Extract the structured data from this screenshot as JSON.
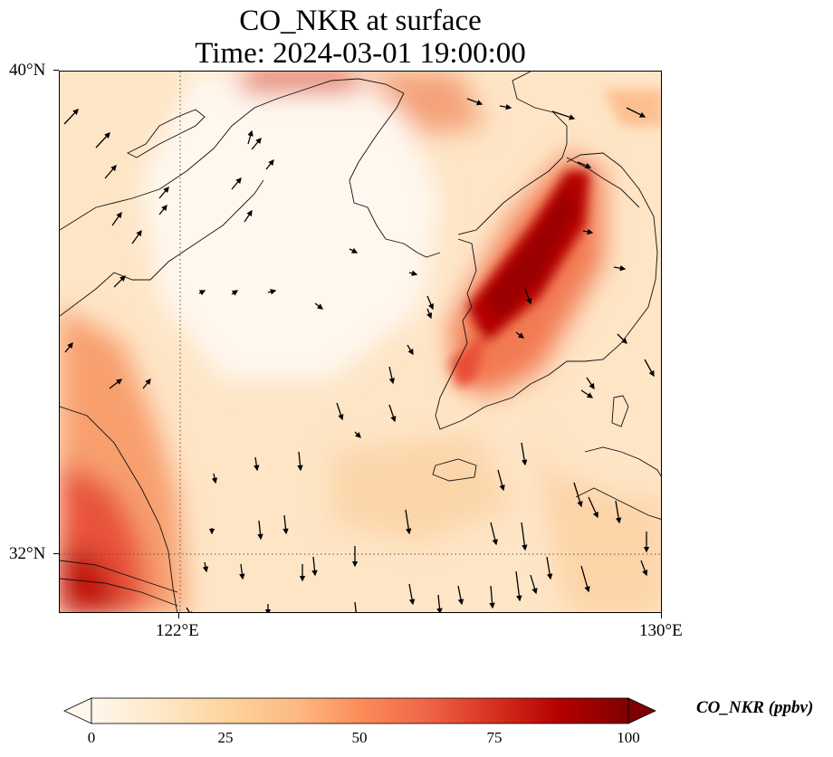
{
  "title": {
    "line1": "CO_NKR at surface",
    "line2": "Time: 2024-03-01 19:00:00"
  },
  "map": {
    "lat_range": [
      31,
      40
    ],
    "lon_range": [
      120,
      130
    ],
    "lat_ticks": [
      {
        "value": 40,
        "label": "40°N"
      },
      {
        "value": 32,
        "label": "32°N"
      }
    ],
    "lon_ticks": [
      {
        "value": 122,
        "label": "122°E"
      },
      {
        "value": 130,
        "label": "130°E"
      }
    ],
    "gridlines": "dotted at 122°E and 32°N",
    "field": "CO_NKR concentration shown as shaded OrRd colour field with wind arrows"
  },
  "colorbar": {
    "label": "CO_NKR (ppbv)",
    "ticks": [
      "0",
      "25",
      "50",
      "75",
      "100"
    ],
    "range": [
      0,
      100
    ],
    "extend": "both",
    "colors": [
      "#fff7ec",
      "#fee8c8",
      "#fdd49e",
      "#fdbb84",
      "#fc8d59",
      "#ef6548",
      "#d7301f",
      "#b30000",
      "#7f0000"
    ]
  }
}
